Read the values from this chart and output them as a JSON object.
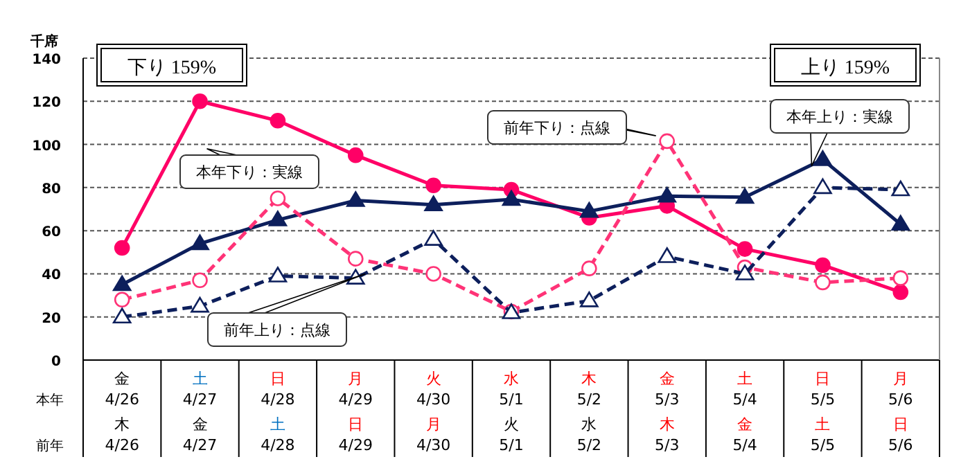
{
  "chart_data": {
    "type": "line",
    "ylabel": "千席",
    "categories": [
      "金\n4/26\n木\n4/26",
      "土\n4/27\n金\n4/27",
      "日\n4/28\n土\n4/28",
      "月\n4/29\n日\n4/29",
      "火\n4/30\n月\n4/30",
      "水\n5/1\n火\n5/1",
      "木\n5/2\n水\n5/2",
      "金\n5/3\n木\n5/3",
      "土\n5/4\n金\n5/4",
      "日\n5/5\n土\n5/5",
      "月\n5/6\n日\n5/6"
    ],
    "series": [
      {
        "name": "本年下り：実線",
        "color": "#ff0066",
        "marker": "circle",
        "line_style": "solid",
        "values": [
          52,
          120,
          111,
          95,
          81,
          79,
          66,
          71.5,
          51.5,
          44,
          31.5
        ]
      },
      {
        "name": "本年上り：実線",
        "color": "#0d1f5c",
        "marker": "triangle",
        "line_style": "solid",
        "values": [
          35,
          54,
          65,
          74,
          72,
          74.5,
          69,
          76,
          75.5,
          93,
          63
        ]
      },
      {
        "name": "前年下り：点線",
        "color": "#ff3377",
        "marker": "circle",
        "line_style": "dashed",
        "values": [
          28,
          37,
          75,
          47,
          40,
          22.5,
          42.5,
          101.5,
          43,
          36,
          38
        ]
      },
      {
        "name": "前年上り：点線",
        "color": "#0d1f5c",
        "marker": "triangle",
        "line_style": "dashed",
        "values": [
          20,
          25,
          39,
          38,
          56,
          22,
          27.5,
          48,
          40,
          80,
          79
        ]
      }
    ],
    "ylim": [
      0,
      140
    ],
    "yticks": [
      0,
      20,
      40,
      60,
      80,
      100,
      120,
      140
    ],
    "grid": "y",
    "annotations": [
      "下り 159%",
      "上り 159%",
      "本年",
      "前年"
    ]
  }
}
